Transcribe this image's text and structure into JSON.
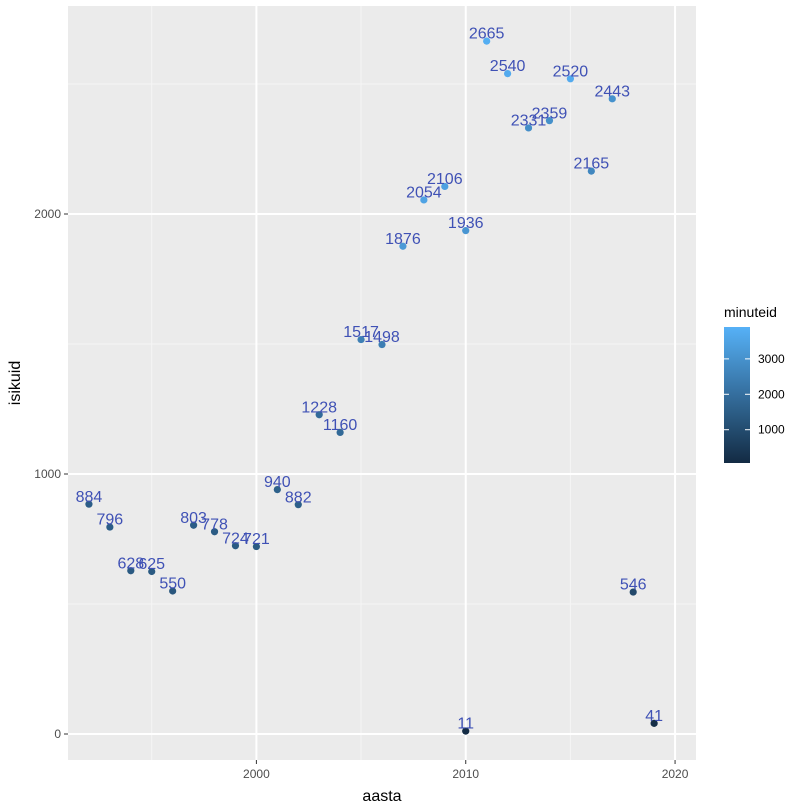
{
  "chart_data": {
    "type": "scatter",
    "xlabel": "aasta",
    "ylabel": "isikuid",
    "xlim": [
      1991,
      2021
    ],
    "ylim": [
      -100,
      2800
    ],
    "x_ticks": [
      2000,
      2010,
      2020
    ],
    "y_ticks": [
      0,
      1000,
      2000
    ],
    "grid": true,
    "legend": {
      "title": "minuteid",
      "position": "right",
      "ticks": [
        1000,
        2000,
        3000
      ],
      "range": [
        60,
        3900
      ],
      "color_low": "#132b43",
      "color_high": "#56b1f7"
    },
    "label_color": "#3f51b5",
    "points": [
      {
        "x": 1992,
        "y": 884,
        "label": "884",
        "minutes": 1500
      },
      {
        "x": 1993,
        "y": 796,
        "label": "796",
        "minutes": 1500
      },
      {
        "x": 1994,
        "y": 628,
        "label": "628",
        "minutes": 1400
      },
      {
        "x": 1995,
        "y": 625,
        "label": "625",
        "minutes": 1400
      },
      {
        "x": 1996,
        "y": 550,
        "label": "550",
        "minutes": 1300
      },
      {
        "x": 1997,
        "y": 803,
        "label": "803",
        "minutes": 1500
      },
      {
        "x": 1998,
        "y": 778,
        "label": "778",
        "minutes": 1450
      },
      {
        "x": 1999,
        "y": 724,
        "label": "724",
        "minutes": 1400
      },
      {
        "x": 2000,
        "y": 721,
        "label": "721",
        "minutes": 1400
      },
      {
        "x": 2001,
        "y": 940,
        "label": "940",
        "minutes": 1600
      },
      {
        "x": 2002,
        "y": 882,
        "label": "882",
        "minutes": 1550
      },
      {
        "x": 2003,
        "y": 1228,
        "label": "1228",
        "minutes": 1900
      },
      {
        "x": 2004,
        "y": 1160,
        "label": "1160",
        "minutes": 1850
      },
      {
        "x": 2005,
        "y": 1517,
        "label": "1517",
        "minutes": 2500
      },
      {
        "x": 2006,
        "y": 1498,
        "label": "1498",
        "minutes": 2450
      },
      {
        "x": 2007,
        "y": 1876,
        "label": "1876",
        "minutes": 3200
      },
      {
        "x": 2008,
        "y": 2054,
        "label": "2054",
        "minutes": 3500
      },
      {
        "x": 2009,
        "y": 2106,
        "label": "2106",
        "minutes": 3400
      },
      {
        "x": 2010,
        "y": 1936,
        "label": "1936",
        "minutes": 3100
      },
      {
        "x": 2010,
        "y": 11,
        "label": "11",
        "minutes": 100
      },
      {
        "x": 2011,
        "y": 2665,
        "label": "2665",
        "minutes": 3800
      },
      {
        "x": 2012,
        "y": 2540,
        "label": "2540",
        "minutes": 3700
      },
      {
        "x": 2013,
        "y": 2331,
        "label": "2331",
        "minutes": 2900
      },
      {
        "x": 2014,
        "y": 2359,
        "label": "2359",
        "minutes": 2950
      },
      {
        "x": 2015,
        "y": 2520,
        "label": "2520",
        "minutes": 3700
      },
      {
        "x": 2016,
        "y": 2165,
        "label": "2165",
        "minutes": 2700
      },
      {
        "x": 2017,
        "y": 2443,
        "label": "2443",
        "minutes": 3000
      },
      {
        "x": 2018,
        "y": 546,
        "label": "546",
        "minutes": 900
      },
      {
        "x": 2019,
        "y": 41,
        "label": "41",
        "minutes": 150
      }
    ]
  }
}
